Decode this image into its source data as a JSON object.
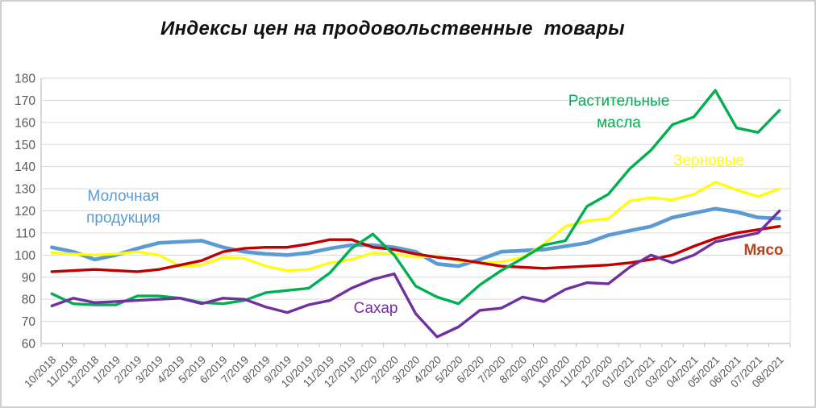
{
  "frame": {
    "background": "#ffffff",
    "border_color": "#cfcfcf"
  },
  "chart_data": {
    "type": "line",
    "title": "Индексы цен на продовольственные  товары",
    "grid": true,
    "legend_position": "inline-labels",
    "grid_color": "#d9d9d9",
    "axis_color": "#bfbfbf",
    "tick_label_color": "#595959",
    "y_axis": {
      "min": 60,
      "max": 180,
      "step": 10,
      "tick_labels": [
        "180",
        "170",
        "160",
        "150",
        "140",
        "130",
        "120",
        "110",
        "100",
        "90",
        "80",
        "70",
        "60"
      ]
    },
    "categories": [
      "10/2018",
      "11/2018",
      "12/2018",
      "1/2019",
      "2/2019",
      "3/2019",
      "4/2019",
      "5/2019",
      "6/2019",
      "7/2019",
      "8/2019",
      "9/2019",
      "10/2019",
      "11/2019",
      "12/2019",
      "1/2020",
      "2/2020",
      "3/2020",
      "4/2020",
      "5/2020",
      "6/2020",
      "7/2020",
      "8/2020",
      "9/2020",
      "10/2020",
      "11/2020",
      "12/2020",
      "01/2021",
      "02/2021",
      "03/2021",
      "04/2021",
      "05/2021",
      "06/2021",
      "07/2021",
      "08/2021"
    ],
    "series": [
      {
        "name": "Молочная продукция",
        "slug": "dairy",
        "color": "#5B9BD5",
        "width": 4.6,
        "label": {
          "text": "Молочная продукция"
        },
        "values": [
          103.5,
          101.5,
          98,
          100,
          103,
          105.5,
          106,
          106.5,
          103.5,
          101.5,
          100.5,
          100,
          101,
          103,
          104.5,
          104.5,
          103.5,
          101.5,
          96,
          95,
          98,
          101.5,
          102,
          102.5,
          104,
          105.5,
          109,
          111,
          113,
          117,
          119,
          121,
          119.5,
          117,
          116.5
        ]
      },
      {
        "name": "Зерновые",
        "slug": "cereals",
        "color": "#FFFF00",
        "width": 3.2,
        "label": {
          "text": "Зерновые"
        },
        "values": [
          101,
          100.5,
          100,
          100.5,
          101.5,
          100,
          95,
          95.5,
          99,
          98.5,
          95,
          93,
          93.5,
          96.5,
          98,
          101,
          100.5,
          99,
          99.5,
          97.5,
          96.5,
          97,
          99,
          105,
          113,
          115.5,
          116.5,
          124.5,
          126,
          125,
          127.5,
          133,
          129.5,
          126.5,
          130
        ]
      },
      {
        "name": "Мясо",
        "slug": "meat",
        "color": "#C00000",
        "width": 3.4,
        "label": {
          "text": "Мясо",
          "color": "#B5431C"
        },
        "values": [
          92.5,
          93,
          93.5,
          93,
          92.5,
          93.5,
          95.5,
          97.5,
          101.5,
          103,
          103.5,
          103.5,
          105,
          107,
          107,
          103.5,
          102.5,
          100.5,
          99,
          98,
          96.5,
          95,
          94.5,
          94,
          94.5,
          95,
          95.5,
          96.5,
          98,
          100,
          104,
          107.5,
          110,
          111.5,
          113
        ]
      },
      {
        "name": "Растительные масла",
        "slug": "vegetable-oils",
        "color": "#00B050",
        "width": 3.4,
        "label": {
          "text": "Растительные масла"
        },
        "values": [
          82.5,
          78,
          77.5,
          77.5,
          81.5,
          81.5,
          80.5,
          78.5,
          78,
          79.5,
          83,
          84,
          85,
          92,
          103,
          109.5,
          100,
          86,
          81,
          78,
          86.5,
          93,
          98.5,
          104.5,
          106.5,
          122,
          127.5,
          139,
          147.5,
          159,
          162.5,
          174.5,
          157.5,
          155.5,
          165.5
        ]
      },
      {
        "name": "Сахар",
        "slug": "sugar",
        "color": "#7030A0",
        "width": 3.4,
        "label": {
          "text": "Сахар"
        },
        "values": [
          77,
          80.5,
          78.5,
          79,
          79.5,
          80,
          80.5,
          78,
          80.5,
          80,
          76.5,
          74,
          77.5,
          79.5,
          85,
          89,
          91.5,
          73.5,
          63,
          67.5,
          75,
          76,
          81,
          79,
          84.5,
          87.5,
          87,
          94.5,
          100,
          96.5,
          100,
          106,
          108,
          110,
          120
        ]
      }
    ],
    "xlabel": "",
    "ylabel": "",
    "ylim": [
      60,
      180
    ]
  }
}
